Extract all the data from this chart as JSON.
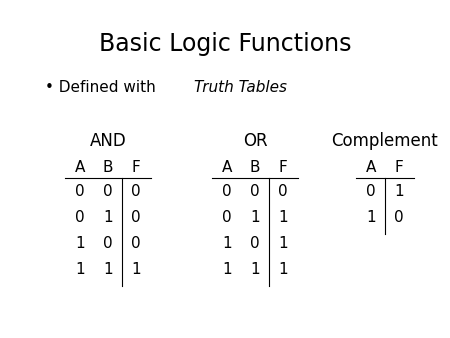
{
  "title": "Basic Logic Functions",
  "bullet_text_normal": "Defined with ",
  "bullet_text_italic": "Truth Tables",
  "background_color": "#ffffff",
  "text_color": "#000000",
  "and_label": "AND",
  "or_label": "OR",
  "complement_label": "Complement",
  "and_headers": [
    "A",
    "B",
    "F"
  ],
  "and_rows": [
    [
      "0",
      "0",
      "0"
    ],
    [
      "0",
      "1",
      "0"
    ],
    [
      "1",
      "0",
      "0"
    ],
    [
      "1",
      "1",
      "1"
    ]
  ],
  "or_headers": [
    "A",
    "B",
    "F"
  ],
  "or_rows": [
    [
      "0",
      "0",
      "0"
    ],
    [
      "0",
      "1",
      "1"
    ],
    [
      "1",
      "0",
      "1"
    ],
    [
      "1",
      "1",
      "1"
    ]
  ],
  "comp_headers": [
    "A",
    "F"
  ],
  "comp_rows": [
    [
      "0",
      "1"
    ],
    [
      "1",
      "0"
    ]
  ],
  "title_fontsize": 17,
  "table_label_fontsize": 12,
  "table_header_fontsize": 11,
  "table_data_fontsize": 11,
  "bullet_fontsize": 11
}
